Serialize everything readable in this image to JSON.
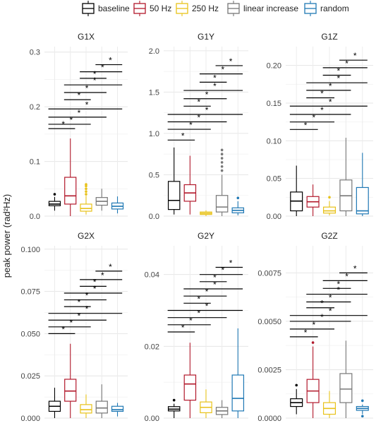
{
  "legend": {
    "position": "top",
    "items": [
      {
        "label": "baseline",
        "color": "#000000"
      },
      {
        "label": "50 Hz",
        "color": "#b2182b"
      },
      {
        "label": "250 Hz",
        "color": "#e8c21a"
      },
      {
        "label": "linear increase",
        "color": "#777777"
      },
      {
        "label": "random",
        "color": "#1f78b4"
      }
    ]
  },
  "ylabel": "peak power (rad²Hz)",
  "chart_data": [
    {
      "type": "box",
      "title": "G1X",
      "ylim": [
        0,
        0.31
      ],
      "yticks": [
        0.0,
        0.1,
        0.2,
        0.3
      ],
      "tick_labels": [
        "0.0",
        "0.1",
        "0.2",
        "0.3"
      ],
      "groups": [
        "baseline",
        "50 Hz",
        "250 Hz",
        "linear increase",
        "random"
      ],
      "boxes": [
        {
          "min": 0.01,
          "q1": 0.019,
          "median": 0.022,
          "q3": 0.027,
          "max": 0.035,
          "outliers": [
            0.04
          ]
        },
        {
          "min": 0.0,
          "q1": 0.022,
          "median": 0.037,
          "q3": 0.071,
          "max": 0.142,
          "outliers": []
        },
        {
          "min": 0.003,
          "q1": 0.009,
          "median": 0.014,
          "q3": 0.022,
          "max": 0.037,
          "outliers": [
            0.04,
            0.045,
            0.05,
            0.055,
            0.058
          ]
        },
        {
          "min": 0.01,
          "q1": 0.02,
          "median": 0.027,
          "q3": 0.034,
          "max": 0.05,
          "outliers": []
        },
        {
          "min": 0.005,
          "q1": 0.013,
          "median": 0.018,
          "q3": 0.024,
          "max": 0.036,
          "outliers": []
        }
      ],
      "significance": [
        {
          "from": 1,
          "to": 2,
          "y": 0.16,
          "label": "*"
        },
        {
          "from": 1,
          "to": 3,
          "y": 0.168,
          "label": "*"
        },
        {
          "from": 1,
          "to": 4,
          "y": 0.181,
          "label": "*"
        },
        {
          "from": 1,
          "to": 5,
          "y": 0.196,
          "label": "*"
        },
        {
          "from": 2,
          "to": 3,
          "y": 0.213,
          "label": "*"
        },
        {
          "from": 2,
          "to": 4,
          "y": 0.226,
          "label": "*"
        },
        {
          "from": 2,
          "to": 5,
          "y": 0.24,
          "label": "*"
        },
        {
          "from": 3,
          "to": 4,
          "y": 0.252,
          "label": "*"
        },
        {
          "from": 3,
          "to": 5,
          "y": 0.264,
          "label": "*"
        },
        {
          "from": 4,
          "to": 5,
          "y": 0.277,
          "label": "*"
        }
      ]
    },
    {
      "type": "box",
      "title": "G1Y",
      "ylim": [
        0,
        2.05
      ],
      "yticks": [
        0.0,
        0.5,
        1.0,
        1.5,
        2.0
      ],
      "tick_labels": [
        "0.0",
        "0.5",
        "1.0",
        "1.5",
        "2.0"
      ],
      "groups": [
        "baseline",
        "50 Hz",
        "250 Hz",
        "linear increase",
        "random"
      ],
      "boxes": [
        {
          "min": 0.02,
          "q1": 0.08,
          "median": 0.19,
          "q3": 0.42,
          "max": 0.83,
          "outliers": []
        },
        {
          "min": 0.02,
          "q1": 0.18,
          "median": 0.28,
          "q3": 0.38,
          "max": 0.73,
          "outliers": []
        },
        {
          "min": 0.0,
          "q1": 0.02,
          "median": 0.035,
          "q3": 0.05,
          "max": 0.07,
          "outliers": []
        },
        {
          "min": 0.0,
          "q1": 0.05,
          "median": 0.11,
          "q3": 0.25,
          "max": 0.5,
          "outliers": [
            0.55,
            0.6,
            0.65,
            0.7,
            0.75,
            0.8
          ]
        },
        {
          "min": 0.01,
          "q1": 0.04,
          "median": 0.07,
          "q3": 0.1,
          "max": 0.18,
          "outliers": [
            0.22
          ]
        }
      ],
      "significance": [
        {
          "from": 1,
          "to": 2,
          "y": 0.92,
          "label": "*"
        },
        {
          "from": 1,
          "to": 3,
          "y": 1.05,
          "label": "*"
        },
        {
          "from": 1,
          "to": 4,
          "y": 1.14,
          "label": "*"
        },
        {
          "from": 1,
          "to": 5,
          "y": 1.23,
          "label": "*"
        },
        {
          "from": 2,
          "to": 3,
          "y": 1.33,
          "label": "*"
        },
        {
          "from": 2,
          "to": 4,
          "y": 1.42,
          "label": "*"
        },
        {
          "from": 2,
          "to": 5,
          "y": 1.52,
          "label": "*"
        },
        {
          "from": 3,
          "to": 4,
          "y": 1.62,
          "label": "*"
        },
        {
          "from": 3,
          "to": 5,
          "y": 1.72,
          "label": "*"
        },
        {
          "from": 4,
          "to": 5,
          "y": 1.82,
          "label": "*"
        }
      ]
    },
    {
      "type": "box",
      "title": "G1Z",
      "ylim": [
        0,
        0.225
      ],
      "yticks": [
        0.0,
        0.05,
        0.1,
        0.15,
        0.2
      ],
      "tick_labels": [
        "0.00",
        "0.05",
        "0.10",
        "0.15",
        "0.20"
      ],
      "groups": [
        "baseline",
        "50 Hz",
        "250 Hz",
        "linear increase",
        "random"
      ],
      "boxes": [
        {
          "min": 0.0,
          "q1": 0.007,
          "median": 0.02,
          "q3": 0.032,
          "max": 0.067,
          "outliers": []
        },
        {
          "min": 0.0,
          "q1": 0.012,
          "median": 0.019,
          "q3": 0.026,
          "max": 0.042,
          "outliers": []
        },
        {
          "min": 0.001,
          "q1": 0.004,
          "median": 0.007,
          "q3": 0.012,
          "max": 0.02,
          "outliers": [
            0.025
          ]
        },
        {
          "min": 0.0,
          "q1": 0.007,
          "median": 0.027,
          "q3": 0.048,
          "max": 0.104,
          "outliers": []
        },
        {
          "min": 0.0,
          "q1": 0.003,
          "median": 0.007,
          "q3": 0.038,
          "max": 0.084,
          "outliers": []
        }
      ],
      "significance": [
        {
          "from": 1,
          "to": 2,
          "y": 0.115,
          "label": "*"
        },
        {
          "from": 1,
          "to": 3,
          "y": 0.125,
          "label": "*"
        },
        {
          "from": 1,
          "to": 4,
          "y": 0.135,
          "label": "*"
        },
        {
          "from": 1,
          "to": 5,
          "y": 0.146,
          "label": "*"
        },
        {
          "from": 2,
          "to": 3,
          "y": 0.157,
          "label": "*"
        },
        {
          "from": 2,
          "to": 4,
          "y": 0.167,
          "label": "*"
        },
        {
          "from": 2,
          "to": 5,
          "y": 0.177,
          "label": "*"
        },
        {
          "from": 3,
          "to": 4,
          "y": 0.187,
          "label": "*"
        },
        {
          "from": 3,
          "to": 5,
          "y": 0.197,
          "label": "*"
        },
        {
          "from": 4,
          "to": 5,
          "y": 0.207,
          "label": "*"
        }
      ]
    },
    {
      "type": "box",
      "title": "G2X",
      "ylim": [
        0,
        0.102
      ],
      "yticks": [
        0.0,
        0.025,
        0.05,
        0.075,
        0.1
      ],
      "tick_labels": [
        "0.000",
        "0.025",
        "0.050",
        "0.075",
        "0.100"
      ],
      "groups": [
        "baseline",
        "50 Hz",
        "250 Hz",
        "linear increase",
        "random"
      ],
      "boxes": [
        {
          "min": 0.0,
          "q1": 0.004,
          "median": 0.007,
          "q3": 0.01,
          "max": 0.018,
          "outliers": []
        },
        {
          "min": 0.0,
          "q1": 0.01,
          "median": 0.016,
          "q3": 0.023,
          "max": 0.044,
          "outliers": []
        },
        {
          "min": 0.0,
          "q1": 0.003,
          "median": 0.005,
          "q3": 0.008,
          "max": 0.014,
          "outliers": []
        },
        {
          "min": 0.0,
          "q1": 0.003,
          "median": 0.006,
          "q3": 0.01,
          "max": 0.02,
          "outliers": []
        },
        {
          "min": 0.001,
          "q1": 0.004,
          "median": 0.005,
          "q3": 0.007,
          "max": 0.009,
          "outliers": []
        }
      ],
      "significance": [
        {
          "from": 1,
          "to": 2,
          "y": 0.05,
          "label": "*"
        },
        {
          "from": 1,
          "to": 3,
          "y": 0.054,
          "label": "*"
        },
        {
          "from": 1,
          "to": 4,
          "y": 0.058,
          "label": "*"
        },
        {
          "from": 1,
          "to": 5,
          "y": 0.062,
          "label": "*"
        },
        {
          "from": 2,
          "to": 3,
          "y": 0.066,
          "label": "*"
        },
        {
          "from": 2,
          "to": 4,
          "y": 0.07,
          "label": "*"
        },
        {
          "from": 2,
          "to": 5,
          "y": 0.074,
          "label": "*"
        },
        {
          "from": 3,
          "to": 4,
          "y": 0.078,
          "label": "*"
        },
        {
          "from": 3,
          "to": 5,
          "y": 0.082,
          "label": "*"
        },
        {
          "from": 4,
          "to": 5,
          "y": 0.087,
          "label": "*"
        }
      ]
    },
    {
      "type": "box",
      "title": "G2Y",
      "ylim": [
        0,
        0.048
      ],
      "yticks": [
        0.0,
        0.02,
        0.04
      ],
      "tick_labels": [
        "0.00",
        "0.02",
        "0.04"
      ],
      "groups": [
        "baseline",
        "50 Hz",
        "250 Hz",
        "linear increase",
        "random"
      ],
      "boxes": [
        {
          "min": 0.0,
          "q1": 0.002,
          "median": 0.0025,
          "q3": 0.0032,
          "max": 0.004,
          "outliers": [
            0.005
          ]
        },
        {
          "min": 0.0,
          "q1": 0.005,
          "median": 0.0095,
          "q3": 0.012,
          "max": 0.021,
          "outliers": []
        },
        {
          "min": 0.0,
          "q1": 0.0015,
          "median": 0.003,
          "q3": 0.0045,
          "max": 0.008,
          "outliers": []
        },
        {
          "min": 0.0,
          "q1": 0.001,
          "median": 0.002,
          "q3": 0.003,
          "max": 0.005,
          "outliers": []
        },
        {
          "min": 0.0,
          "q1": 0.002,
          "median": 0.0055,
          "q3": 0.012,
          "max": 0.025,
          "outliers": []
        }
      ],
      "significance": [
        {
          "from": 1,
          "to": 2,
          "y": 0.024,
          "label": "*"
        },
        {
          "from": 1,
          "to": 3,
          "y": 0.026,
          "label": "*"
        },
        {
          "from": 1,
          "to": 4,
          "y": 0.028,
          "label": "*"
        },
        {
          "from": 1,
          "to": 5,
          "y": 0.03,
          "label": "*"
        },
        {
          "from": 2,
          "to": 3,
          "y": 0.032,
          "label": "*"
        },
        {
          "from": 2,
          "to": 4,
          "y": 0.034,
          "label": "*"
        },
        {
          "from": 2,
          "to": 5,
          "y": 0.036,
          "label": "*"
        },
        {
          "from": 3,
          "to": 4,
          "y": 0.038,
          "label": "*"
        },
        {
          "from": 3,
          "to": 5,
          "y": 0.04,
          "label": "*"
        },
        {
          "from": 4,
          "to": 5,
          "y": 0.042,
          "label": "*"
        }
      ]
    },
    {
      "type": "box",
      "title": "G2Z",
      "ylim": [
        0,
        0.0089
      ],
      "yticks": [
        0.0,
        0.0025,
        0.005,
        0.0075
      ],
      "tick_labels": [
        "0.0000",
        "0.0025",
        "0.0050",
        "0.0075"
      ],
      "groups": [
        "baseline",
        "50 Hz",
        "250 Hz",
        "linear increase",
        "random"
      ],
      "boxes": [
        {
          "min": 0.0002,
          "q1": 0.0006,
          "median": 0.0008,
          "q3": 0.001,
          "max": 0.0015,
          "outliers": [
            0.0017
          ]
        },
        {
          "min": 0.0,
          "q1": 0.0008,
          "median": 0.0014,
          "q3": 0.002,
          "max": 0.0037,
          "outliers": [
            0.0039
          ]
        },
        {
          "min": 0.0,
          "q1": 0.0002,
          "median": 0.0005,
          "q3": 0.0008,
          "max": 0.0014,
          "outliers": []
        },
        {
          "min": 0.0,
          "q1": 0.0008,
          "median": 0.0015,
          "q3": 0.0023,
          "max": 0.004,
          "outliers": []
        },
        {
          "min": 0.0002,
          "q1": 0.0004,
          "median": 0.0005,
          "q3": 0.0006,
          "max": 0.0007,
          "outliers": [
            0.0001,
            0.0009
          ]
        }
      ],
      "significance": [
        {
          "from": 1,
          "to": 2,
          "y": 0.0042,
          "label": "*"
        },
        {
          "from": 1,
          "to": 3,
          "y": 0.0046,
          "label": "*"
        },
        {
          "from": 1,
          "to": 4,
          "y": 0.005,
          "label": "*"
        },
        {
          "from": 1,
          "to": 5,
          "y": 0.0053,
          "label": "*"
        },
        {
          "from": 2,
          "to": 3,
          "y": 0.0057,
          "label": "*"
        },
        {
          "from": 2,
          "to": 4,
          "y": 0.006,
          "label": "*"
        },
        {
          "from": 2,
          "to": 5,
          "y": 0.0064,
          "label": "*"
        },
        {
          "from": 3,
          "to": 4,
          "y": 0.0067,
          "label": "*"
        },
        {
          "from": 3,
          "to": 5,
          "y": 0.0071,
          "label": "*"
        },
        {
          "from": 4,
          "to": 5,
          "y": 0.0075,
          "label": "*"
        }
      ]
    }
  ]
}
